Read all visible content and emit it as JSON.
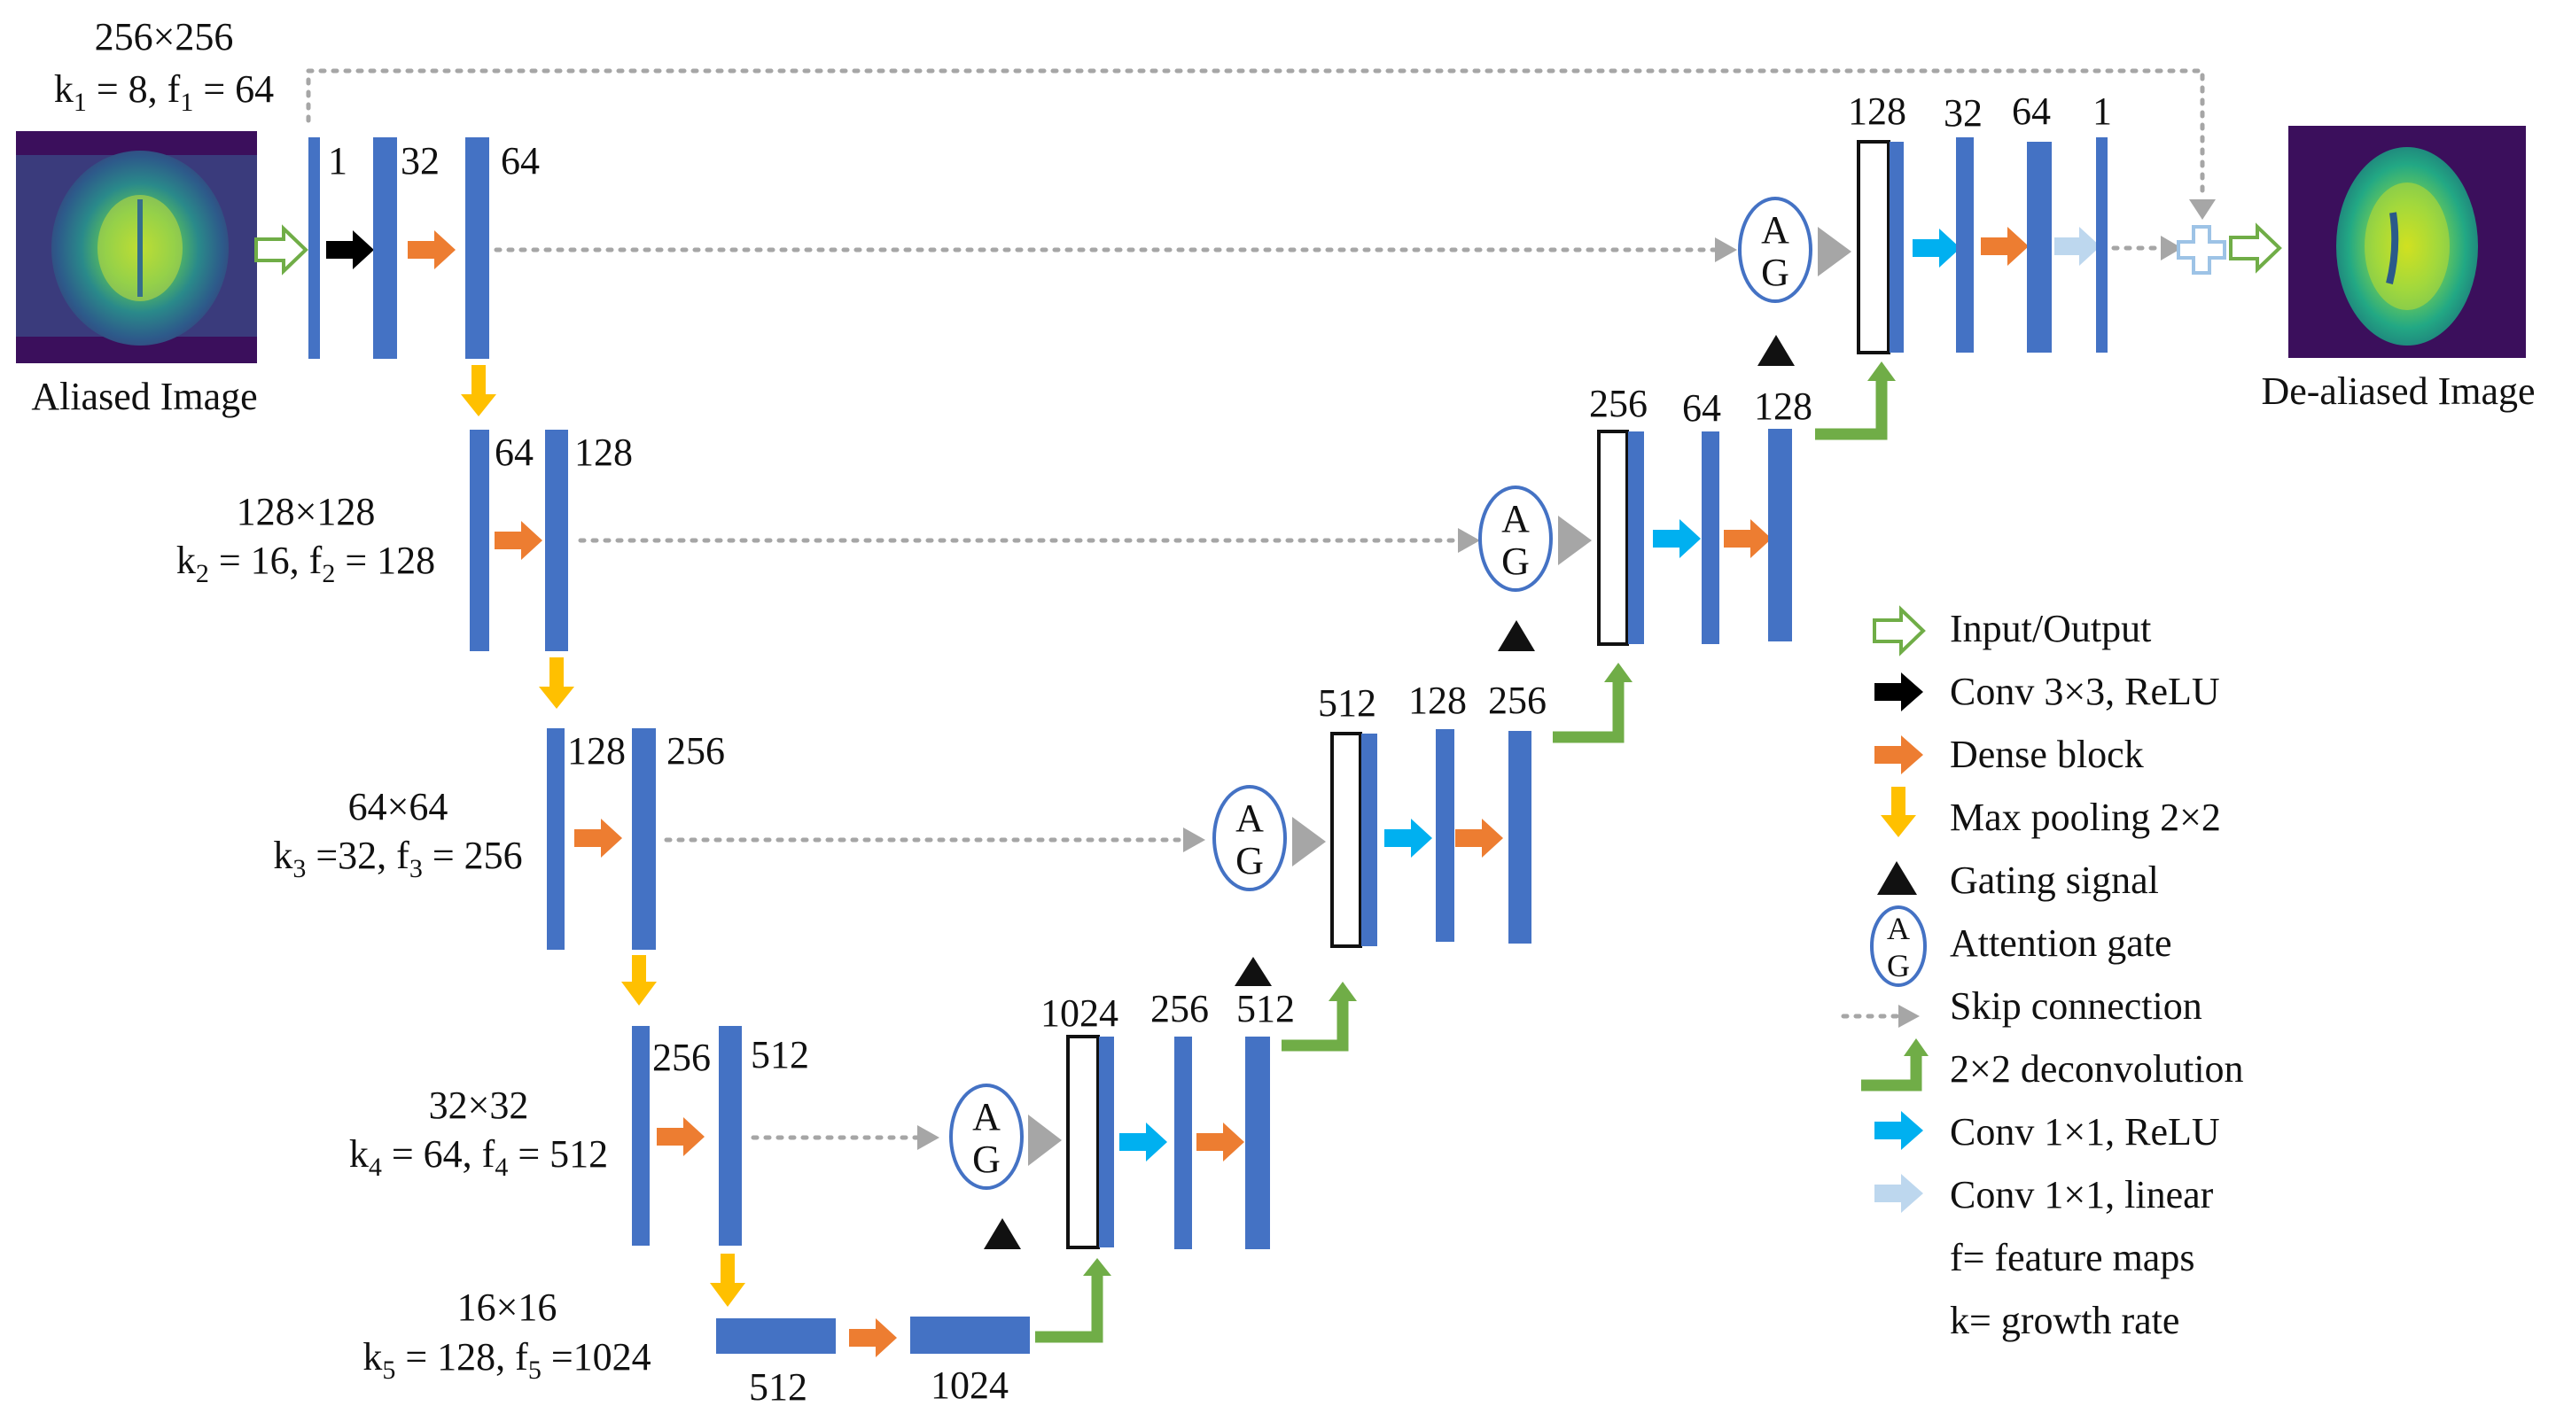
{
  "input": {
    "size": "256×256",
    "k_sym": "k",
    "k_sub": "1",
    "k_val": " = 8,",
    "f_sym": " f",
    "f_sub": "1",
    "f_val": " = 64",
    "caption": "Aliased Image"
  },
  "output": {
    "caption": "De-aliased Image"
  },
  "encoder": [
    {
      "size": "256×256",
      "k_sub": "1",
      "f_sub": "1",
      "labels": [
        "1",
        "32",
        "64"
      ]
    },
    {
      "size": "128×128",
      "k_sym": "k",
      "k_sub": "2",
      "k_val": " = 16,",
      "f_sym": " f",
      "f_sub": "2",
      "f_val": " = 128",
      "labels": [
        "64",
        "128"
      ]
    },
    {
      "size": "64×64",
      "k_sym": "k",
      "k_sub": "3",
      "k_val": " =32,",
      "f_sym": " f",
      "f_sub": "3",
      "f_val": " = 256",
      "labels": [
        "128",
        "256"
      ]
    },
    {
      "size": "32×32",
      "k_sym": "k",
      "k_sub": "4",
      "k_val": " = 64,",
      "f_sym": " f",
      "f_sub": "4",
      "f_val": " = 512",
      "labels": [
        "256",
        "512"
      ]
    },
    {
      "size": "16×16",
      "k_sym": "k",
      "k_sub": "5",
      "k_val": " = 128,",
      "f_sym": " f",
      "f_sub": "5",
      "f_val": " =1024",
      "labels": [
        "512",
        "1024"
      ]
    }
  ],
  "decoder": [
    {
      "labels": [
        "1024",
        "256",
        "512"
      ]
    },
    {
      "labels": [
        "512",
        "128",
        "256"
      ]
    },
    {
      "labels": [
        "256",
        "64",
        "128"
      ]
    },
    {
      "labels": [
        "128",
        "32",
        "64",
        "1"
      ]
    }
  ],
  "attention_gate": {
    "top": "A",
    "bottom": "G"
  },
  "legend": [
    {
      "icon": "input-output-arrow",
      "label": "Input/Output"
    },
    {
      "icon": "conv-relu-arrow",
      "label": "Conv 3×3, ReLU"
    },
    {
      "icon": "dense-block-arrow",
      "label": "Dense block"
    },
    {
      "icon": "max-pooling-arrow",
      "label": "Max pooling 2×2"
    },
    {
      "icon": "gating-signal-triangle",
      "label": "Gating signal"
    },
    {
      "icon": "attention-gate-circle",
      "label": "Attention gate"
    },
    {
      "icon": "skip-connection-arrow",
      "label": "Skip connection"
    },
    {
      "icon": "deconvolution-arrow",
      "label": "2×2 deconvolution"
    },
    {
      "icon": "conv1x1-relu-arrow",
      "label": "Conv 1×1, ReLU"
    },
    {
      "icon": "conv1x1-linear-arrow",
      "label": "Conv 1×1, linear"
    },
    {
      "icon": "",
      "label": "f= feature maps"
    },
    {
      "icon": "",
      "label": "k= growth rate"
    }
  ],
  "colors": {
    "block": "#4472c4",
    "input_output": "#70ad47",
    "conv_relu": "#000000",
    "dense_block": "#ed7d31",
    "max_pooling": "#ffc000",
    "gating": "#000000",
    "attention_gate": "#4472c4",
    "skip": "#a6a6a6",
    "deconvolution": "#70ad47",
    "conv1x1_relu": "#00b0f0",
    "conv1x1_linear": "#bdd7ee"
  }
}
